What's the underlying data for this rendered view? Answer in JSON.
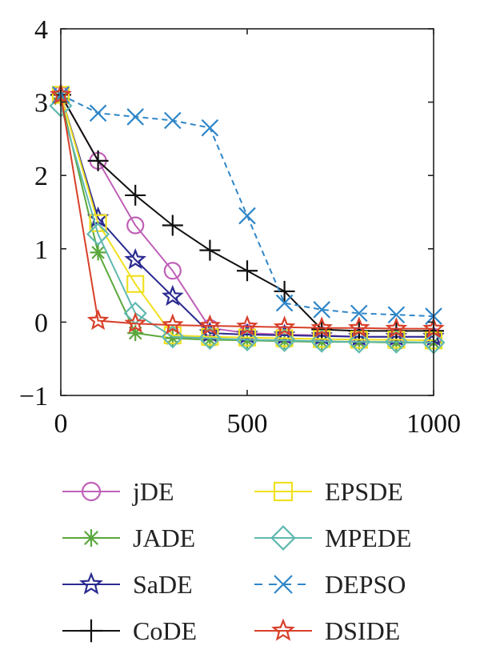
{
  "chart_data": {
    "type": "line",
    "xlim": [
      0,
      1000
    ],
    "ylim": [
      -1,
      4
    ],
    "x_ticks": [
      {
        "value": 0,
        "label": "0"
      },
      {
        "value": 500,
        "label": "500"
      },
      {
        "value": 1000,
        "label": "1000"
      }
    ],
    "y_ticks": [
      {
        "value": -1,
        "label": "−1"
      },
      {
        "value": 0,
        "label": "0"
      },
      {
        "value": 1,
        "label": "1"
      },
      {
        "value": 2,
        "label": "2"
      },
      {
        "value": 3,
        "label": "3"
      },
      {
        "value": 4,
        "label": "4"
      }
    ],
    "grid": false,
    "legend_position": "bottom",
    "x": [
      0,
      100,
      200,
      300,
      400,
      500,
      600,
      700,
      800,
      900,
      1000
    ],
    "series": [
      {
        "name": "jDE",
        "color": "#c060b8",
        "marker": "circle",
        "dash": "solid",
        "values": [
          3.1,
          2.2,
          1.32,
          0.7,
          -0.08,
          -0.15,
          -0.17,
          -0.18,
          -0.2,
          -0.2,
          -0.2
        ]
      },
      {
        "name": "JADE",
        "color": "#5aa83c",
        "marker": "asterisk",
        "dash": "solid",
        "values": [
          3.05,
          0.95,
          -0.15,
          -0.22,
          -0.24,
          -0.25,
          -0.26,
          -0.27,
          -0.27,
          -0.28,
          -0.28
        ]
      },
      {
        "name": "SaDE",
        "color": "#2a2a90",
        "marker": "star",
        "dash": "solid",
        "values": [
          3.1,
          1.42,
          0.85,
          0.35,
          -0.15,
          -0.17,
          -0.18,
          -0.19,
          -0.2,
          -0.2,
          -0.2
        ]
      },
      {
        "name": "CoDE",
        "color": "#111111",
        "marker": "plus",
        "dash": "solid",
        "values": [
          3.1,
          2.2,
          1.73,
          1.32,
          0.98,
          0.7,
          0.42,
          -0.1,
          -0.12,
          -0.12,
          -0.12
        ]
      },
      {
        "name": "EPSDE",
        "color": "#f0e020",
        "marker": "square",
        "dash": "solid",
        "values": [
          3.1,
          1.35,
          0.52,
          -0.18,
          -0.2,
          -0.21,
          -0.22,
          -0.23,
          -0.24,
          -0.24,
          -0.25
        ]
      },
      {
        "name": "MPEDE",
        "color": "#60b8b0",
        "marker": "diamond",
        "dash": "solid",
        "values": [
          2.95,
          1.2,
          0.12,
          -0.2,
          -0.22,
          -0.24,
          -0.25,
          -0.26,
          -0.27,
          -0.27,
          -0.28
        ]
      },
      {
        "name": "DEPSO",
        "color": "#2f86c8",
        "marker": "x",
        "dash": "dashed",
        "values": [
          3.1,
          2.85,
          2.8,
          2.75,
          2.65,
          1.45,
          0.26,
          0.17,
          0.12,
          0.1,
          0.08
        ]
      },
      {
        "name": "DSIDE",
        "color": "#d8402a",
        "marker": "star",
        "dash": "solid",
        "values": [
          3.1,
          0.02,
          -0.02,
          -0.04,
          -0.05,
          -0.06,
          -0.07,
          -0.08,
          -0.08,
          -0.09,
          -0.09
        ]
      }
    ]
  }
}
